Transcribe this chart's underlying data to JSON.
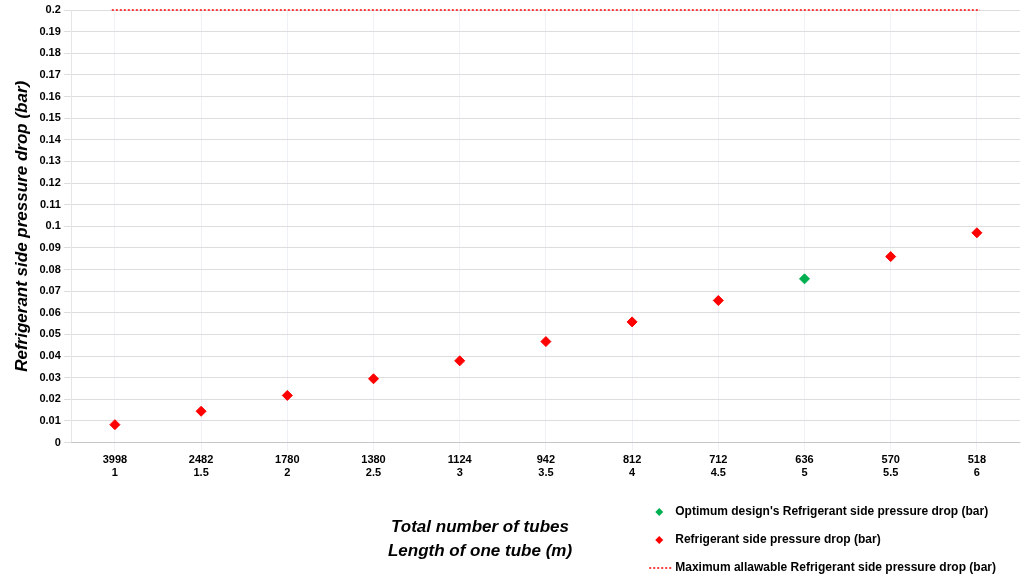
{
  "chart_data": {
    "type": "scatter",
    "xlabel": "Total number of tubes\nLength of one tube (m)",
    "ylabel": "Refrigerant side pressure drop (bar)",
    "categories": [
      "3998\n1",
      "2482\n1.5",
      "1780\n2",
      "1380\n2.5",
      "1124\n3",
      "942\n3.5",
      "812\n4",
      "712\n4.5",
      "636\n5",
      "570\n5.5",
      "518\n6"
    ],
    "series": [
      {
        "name": "Optimum design's Refrigerant side pressure drop (bar)",
        "color": "#00b050",
        "values": [
          null,
          null,
          null,
          null,
          null,
          null,
          null,
          null,
          0.0757,
          null,
          null
        ]
      },
      {
        "name": "Refrigerant side pressure drop (bar)",
        "color": "#ff0000",
        "values": [
          0.0083,
          0.0145,
          0.0218,
          0.0295,
          0.0378,
          0.0467,
          0.0558,
          0.0657,
          null,
          0.086,
          0.097
        ]
      }
    ],
    "ref_lines": [
      {
        "axis": "y",
        "value": 0.2,
        "label": "Maximum allawable Refrigerant side pressure drop (bar)",
        "color": "#ff0000",
        "line_style": "dotted"
      }
    ],
    "ylim": [
      0,
      0.2
    ],
    "yticks": [
      0,
      0.01,
      0.02,
      0.03,
      0.04,
      0.05,
      0.06,
      0.07,
      0.08,
      0.09,
      0.1,
      0.11,
      0.12,
      0.13,
      0.14,
      0.15,
      0.16,
      0.17,
      0.18,
      0.19,
      0.2
    ],
    "grid": true,
    "legend": "bottom right",
    "marker": "diamond"
  }
}
